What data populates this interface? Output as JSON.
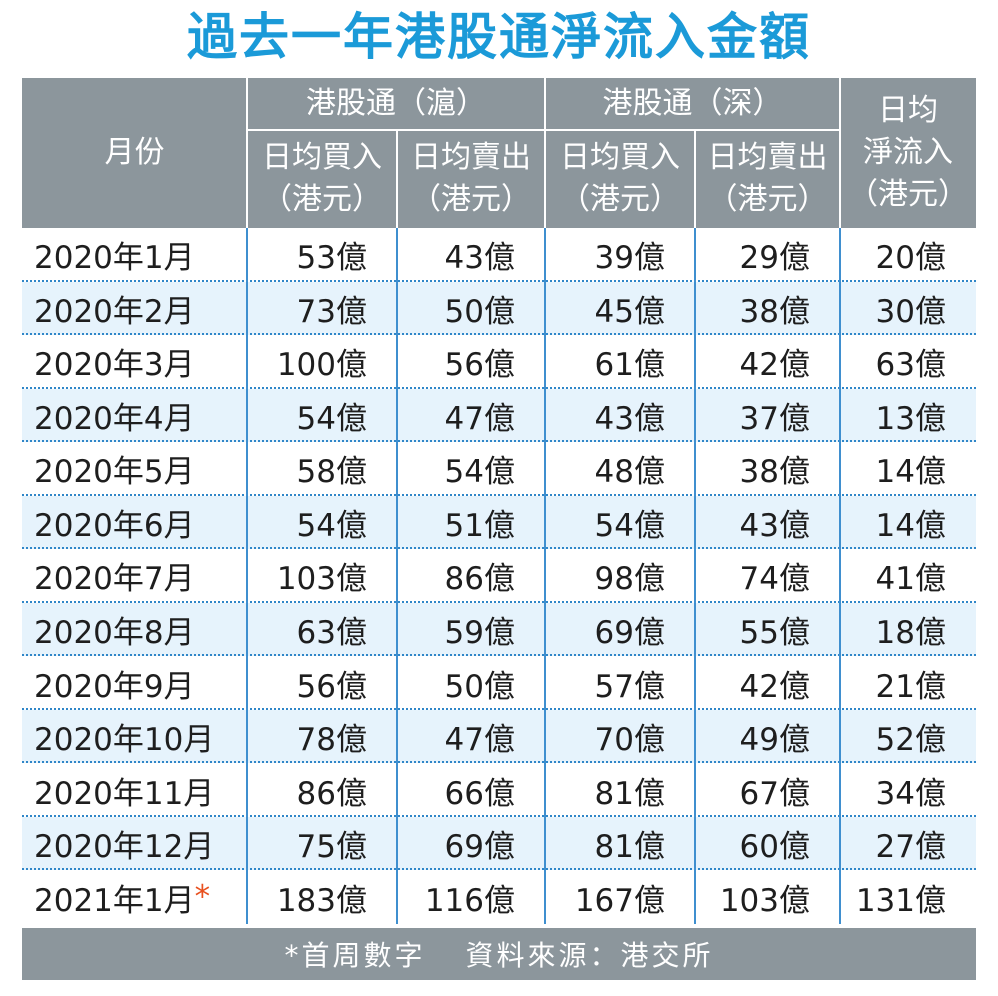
{
  "header": {
    "title": "過去一年港股通淨流入金額"
  },
  "table": {
    "month_header": "月份",
    "groups": [
      "港股通（滬）",
      "港股通（深）"
    ],
    "subheaders": [
      [
        "日均買入",
        "（港元）"
      ],
      [
        "日均賣出",
        "（港元）"
      ],
      [
        "日均買入",
        "（港元）"
      ],
      [
        "日均賣出",
        "（港元）"
      ]
    ],
    "net_header": [
      "日均",
      "淨流入",
      "（港元）"
    ],
    "rows": [
      [
        "2020年1月",
        "53億",
        "43億",
        "39億",
        "29億",
        "20億"
      ],
      [
        "2020年2月",
        "73億",
        "50億",
        "45億",
        "38億",
        "30億"
      ],
      [
        "2020年3月",
        "100億",
        "56億",
        "61億",
        "42億",
        "63億"
      ],
      [
        "2020年4月",
        "54億",
        "47億",
        "43億",
        "37億",
        "13億"
      ],
      [
        "2020年5月",
        "58億",
        "54億",
        "48億",
        "38億",
        "14億"
      ],
      [
        "2020年6月",
        "54億",
        "51億",
        "54億",
        "43億",
        "14億"
      ],
      [
        "2020年7月",
        "103億",
        "86億",
        "98億",
        "74億",
        "41億"
      ],
      [
        "2020年8月",
        "63億",
        "59億",
        "69億",
        "55億",
        "18億"
      ],
      [
        "2020年9月",
        "56億",
        "50億",
        "57億",
        "42億",
        "21億"
      ],
      [
        "2020年10月",
        "78億",
        "47億",
        "70億",
        "49億",
        "52億"
      ],
      [
        "2020年11月",
        "86億",
        "66億",
        "81億",
        "67億",
        "34億"
      ],
      [
        "2020年12月",
        "75億",
        "69億",
        "81億",
        "60億",
        "27億"
      ],
      [
        "2021年1月",
        "183億",
        "116億",
        "167億",
        "103億",
        "131億"
      ]
    ],
    "row_marker": "*"
  },
  "footer": {
    "note": "*首周數字",
    "source": "資料來源：港交所"
  }
}
